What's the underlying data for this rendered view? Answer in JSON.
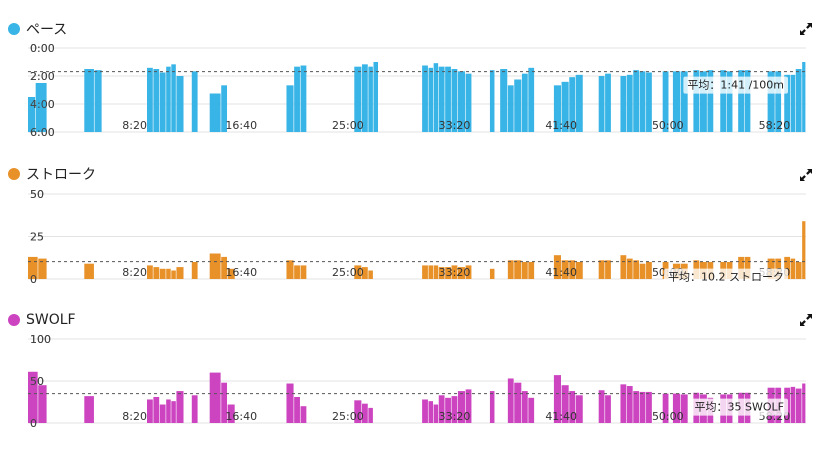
{
  "chart_data": [
    {
      "type": "bar",
      "id": "pace",
      "title": "ペース",
      "color": "#38b4e6",
      "y_ticks": [
        "0:00",
        "2:00",
        "4:00",
        "6:00"
      ],
      "y_min": 0,
      "y_max": 360,
      "inverted": true,
      "avg_value": 101,
      "avg_label": "平均：1:41 /100m",
      "x_ticks": [
        "8:20",
        "16:40",
        "25:00",
        "33:20",
        "41:40",
        "50:00",
        "58:20"
      ],
      "bars": [
        [
          0,
          0.6,
          210
        ],
        [
          0.6,
          1.5,
          150
        ],
        [
          4.4,
          5.2,
          90
        ],
        [
          5.2,
          5.8,
          95
        ],
        [
          9.3,
          9.8,
          85
        ],
        [
          9.8,
          10.3,
          90
        ],
        [
          10.3,
          10.8,
          105
        ],
        [
          10.8,
          11.2,
          80
        ],
        [
          11.2,
          11.6,
          70
        ],
        [
          11.6,
          12.2,
          120
        ],
        [
          12.8,
          13.3,
          100
        ],
        [
          14.2,
          15.1,
          195
        ],
        [
          15.1,
          15.6,
          160
        ],
        [
          20.2,
          20.8,
          160
        ],
        [
          20.8,
          21.3,
          80
        ],
        [
          21.3,
          21.8,
          75
        ],
        [
          25.5,
          26.1,
          80
        ],
        [
          26.1,
          26.6,
          70
        ],
        [
          26.6,
          27.0,
          80
        ],
        [
          27.0,
          27.4,
          60
        ],
        [
          30.8,
          31.3,
          75
        ],
        [
          31.3,
          31.7,
          85
        ],
        [
          31.7,
          32.1,
          65
        ],
        [
          32.1,
          32.6,
          80
        ],
        [
          32.6,
          33.1,
          80
        ],
        [
          33.1,
          33.6,
          90
        ],
        [
          33.6,
          34.2,
          100
        ],
        [
          34.2,
          34.7,
          110
        ],
        [
          36.1,
          36.5,
          95
        ],
        [
          36.9,
          37.5,
          90
        ],
        [
          37.5,
          38.0,
          160
        ],
        [
          38.0,
          38.6,
          135
        ],
        [
          38.6,
          39.1,
          110
        ],
        [
          39.1,
          39.6,
          85
        ],
        [
          41.1,
          41.7,
          160
        ],
        [
          41.7,
          42.3,
          145
        ],
        [
          42.3,
          42.8,
          125
        ],
        [
          42.8,
          43.4,
          115
        ],
        [
          44.6,
          45.1,
          120
        ],
        [
          45.1,
          45.6,
          110
        ],
        [
          46.3,
          46.8,
          120
        ],
        [
          46.8,
          47.3,
          115
        ],
        [
          47.3,
          47.8,
          95
        ],
        [
          47.8,
          48.3,
          100
        ],
        [
          48.3,
          48.8,
          105
        ],
        [
          49.6,
          50.1,
          100
        ],
        [
          50.4,
          51.0,
          100
        ],
        [
          51.0,
          51.6,
          100
        ],
        [
          52.0,
          52.5,
          95
        ],
        [
          52.5,
          53.1,
          100
        ],
        [
          53.1,
          53.6,
          95
        ],
        [
          54.1,
          54.6,
          95
        ],
        [
          54.6,
          55.1,
          100
        ],
        [
          55.5,
          56.0,
          95
        ],
        [
          56.0,
          56.5,
          95
        ],
        [
          57.8,
          58.4,
          100
        ],
        [
          58.4,
          58.9,
          100
        ],
        [
          59.1,
          59.6,
          115
        ],
        [
          59.6,
          60.0,
          115
        ],
        [
          60.0,
          60.5,
          90
        ],
        [
          60.5,
          60.8,
          60
        ]
      ]
    },
    {
      "type": "bar",
      "id": "stroke",
      "title": "ストローク",
      "color": "#e89128",
      "y_ticks": [
        "50",
        "25",
        "0"
      ],
      "y_min": 0,
      "y_max": 50,
      "inverted": false,
      "avg_value": 10.2,
      "avg_label": "平均：10.2 ストローク",
      "x_ticks": [
        "8:20",
        "16:40",
        "25:00",
        "33:20",
        "41:40",
        "50:00",
        "58:20"
      ],
      "bars": [
        [
          0,
          0.8,
          13
        ],
        [
          0.8,
          1.5,
          12
        ],
        [
          4.4,
          5.2,
          9
        ],
        [
          9.3,
          9.8,
          8
        ],
        [
          9.8,
          10.3,
          7
        ],
        [
          10.3,
          10.8,
          6
        ],
        [
          10.8,
          11.2,
          6
        ],
        [
          11.2,
          11.6,
          5
        ],
        [
          11.6,
          12.2,
          7
        ],
        [
          12.8,
          13.3,
          10
        ],
        [
          14.2,
          15.1,
          15
        ],
        [
          15.1,
          15.6,
          13
        ],
        [
          15.6,
          16.2,
          6
        ],
        [
          20.2,
          20.8,
          11
        ],
        [
          20.8,
          21.3,
          8
        ],
        [
          21.3,
          21.8,
          8
        ],
        [
          25.5,
          26.1,
          8
        ],
        [
          26.1,
          26.6,
          7
        ],
        [
          26.6,
          27.0,
          5
        ],
        [
          30.8,
          31.3,
          8
        ],
        [
          31.3,
          31.7,
          8
        ],
        [
          31.7,
          32.1,
          8
        ],
        [
          32.1,
          32.6,
          7
        ],
        [
          32.6,
          33.1,
          7
        ],
        [
          33.1,
          33.6,
          8
        ],
        [
          33.6,
          34.2,
          7
        ],
        [
          34.2,
          34.7,
          8
        ],
        [
          36.1,
          36.5,
          6
        ],
        [
          37.5,
          38.0,
          11
        ],
        [
          38.0,
          38.6,
          11
        ],
        [
          38.6,
          39.1,
          10
        ],
        [
          39.1,
          39.6,
          10
        ],
        [
          41.1,
          41.7,
          14
        ],
        [
          41.7,
          42.3,
          11
        ],
        [
          42.3,
          42.8,
          11
        ],
        [
          42.8,
          43.4,
          10
        ],
        [
          44.6,
          45.1,
          11
        ],
        [
          45.1,
          45.6,
          11
        ],
        [
          46.3,
          46.8,
          14
        ],
        [
          46.8,
          47.3,
          12
        ],
        [
          47.3,
          47.8,
          11
        ],
        [
          47.8,
          48.3,
          9
        ],
        [
          48.3,
          48.8,
          10
        ],
        [
          49.6,
          50.1,
          10
        ],
        [
          50.4,
          51.0,
          9
        ],
        [
          51.0,
          51.6,
          9
        ],
        [
          52.0,
          52.5,
          11
        ],
        [
          52.5,
          53.1,
          10
        ],
        [
          53.1,
          53.6,
          10
        ],
        [
          54.1,
          54.6,
          10
        ],
        [
          54.6,
          55.1,
          10
        ],
        [
          55.5,
          56.0,
          13
        ],
        [
          56.0,
          56.5,
          13
        ],
        [
          57.8,
          58.4,
          12
        ],
        [
          58.4,
          58.9,
          12
        ],
        [
          59.1,
          59.6,
          13
        ],
        [
          59.6,
          60.0,
          12
        ],
        [
          60.0,
          60.5,
          10
        ],
        [
          60.5,
          60.8,
          34
        ]
      ]
    },
    {
      "type": "bar",
      "id": "swolf",
      "title": "SWOLF",
      "color": "#cc44c0",
      "y_ticks": [
        "100",
        "50",
        "0"
      ],
      "y_min": 0,
      "y_max": 100,
      "inverted": false,
      "avg_value": 35,
      "avg_label": "平均：35 SWOLF",
      "x_ticks": [
        "8:20",
        "16:40",
        "25:00",
        "33:20",
        "41:40",
        "50:00",
        "58:20"
      ],
      "bars": [
        [
          0,
          0.8,
          61
        ],
        [
          0.8,
          1.5,
          45
        ],
        [
          4.4,
          5.2,
          32
        ],
        [
          9.3,
          9.8,
          28
        ],
        [
          9.8,
          10.3,
          31
        ],
        [
          10.3,
          10.8,
          22
        ],
        [
          10.8,
          11.2,
          28
        ],
        [
          11.2,
          11.6,
          26
        ],
        [
          11.6,
          12.2,
          38
        ],
        [
          12.8,
          13.3,
          33
        ],
        [
          14.2,
          15.1,
          60
        ],
        [
          15.1,
          15.6,
          48
        ],
        [
          15.6,
          16.2,
          22
        ],
        [
          20.2,
          20.8,
          47
        ],
        [
          20.8,
          21.3,
          31
        ],
        [
          21.3,
          21.8,
          20
        ],
        [
          25.5,
          26.1,
          27
        ],
        [
          26.1,
          26.6,
          23
        ],
        [
          26.6,
          27.0,
          18
        ],
        [
          30.8,
          31.3,
          28
        ],
        [
          31.3,
          31.7,
          26
        ],
        [
          31.7,
          32.1,
          22
        ],
        [
          32.1,
          32.6,
          33
        ],
        [
          32.6,
          33.1,
          30
        ],
        [
          33.1,
          33.6,
          32
        ],
        [
          33.6,
          34.2,
          38
        ],
        [
          34.2,
          34.7,
          40
        ],
        [
          36.1,
          36.5,
          38
        ],
        [
          37.5,
          38.0,
          53
        ],
        [
          38.0,
          38.6,
          48
        ],
        [
          38.6,
          39.1,
          38
        ],
        [
          39.1,
          39.6,
          30
        ],
        [
          41.1,
          41.7,
          57
        ],
        [
          41.7,
          42.3,
          45
        ],
        [
          42.3,
          42.8,
          38
        ],
        [
          42.8,
          43.4,
          33
        ],
        [
          44.6,
          45.1,
          39
        ],
        [
          45.1,
          45.6,
          33
        ],
        [
          46.3,
          46.8,
          46
        ],
        [
          46.8,
          47.3,
          44
        ],
        [
          47.3,
          47.8,
          38
        ],
        [
          47.8,
          48.3,
          37
        ],
        [
          48.3,
          48.8,
          37
        ],
        [
          49.6,
          50.1,
          35
        ],
        [
          50.4,
          51.0,
          35
        ],
        [
          51.0,
          51.6,
          34
        ],
        [
          52.0,
          52.5,
          36
        ],
        [
          52.5,
          53.1,
          34
        ],
        [
          53.1,
          53.6,
          30
        ],
        [
          54.1,
          54.6,
          34
        ],
        [
          54.6,
          55.1,
          34
        ],
        [
          55.5,
          56.0,
          36
        ],
        [
          56.0,
          56.5,
          36
        ],
        [
          57.8,
          58.4,
          42
        ],
        [
          58.4,
          58.9,
          42
        ],
        [
          59.1,
          59.6,
          42
        ],
        [
          59.6,
          60.0,
          43
        ],
        [
          60.0,
          60.5,
          41
        ],
        [
          60.5,
          60.8,
          47
        ]
      ]
    }
  ]
}
